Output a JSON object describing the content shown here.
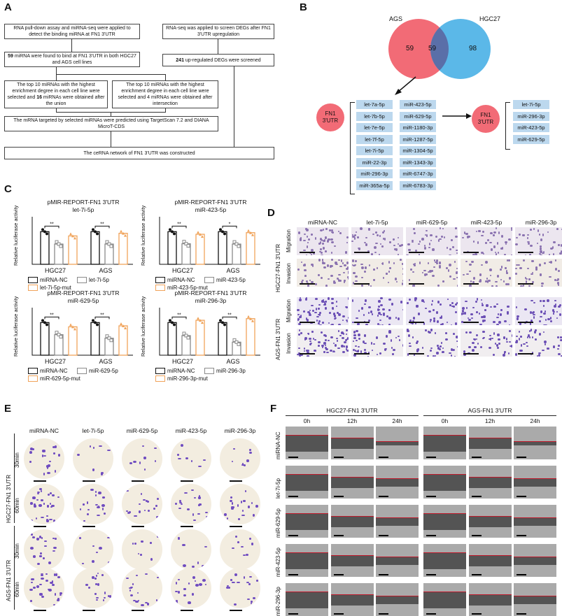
{
  "panels": [
    "A",
    "B",
    "C",
    "D",
    "E",
    "F"
  ],
  "flow": {
    "box1": "RNA pull-down assay and miRNA-seq were applied to detect the binding miRNA at FN1 3'UTR",
    "box2_num": "59",
    "box2": " miRNA were found to bind at FN1 3'UTR in both HGC27 and AGS cell lines",
    "box3a": "The top 10 miRNAs with the highest enrichment degree in each cell line were selected and ",
    "box3a_num": "16",
    "box3a_end": " miRNAs were obtained after the union",
    "box3b": "The top 10 miRNAs with the highest enrichment degree in each cell line were selected and 4 miRNAs were obtained after intersection",
    "box4": "The mRNA targeted by selected miRNAs were predicted using TargetScan 7.2 and DIANA MicroT-CDS",
    "box5": "RNA-seq was applied to screen DEGs after FN1 3'UTR upregulation",
    "box6_num": "241",
    "box6": " up-regulated DEGs were screened",
    "box7": "The ceRNA network of FN1 3'UTR was constructed"
  },
  "venn": {
    "left_label": "AGS",
    "right_label": "HGC27",
    "left_only": "59",
    "overlap": "59",
    "right_only": "98",
    "left_color": "#f26b76",
    "right_color": "#5bb8e8"
  },
  "fn1_label": "FN1\n3'UTR",
  "mirna_union": [
    "let-7a-5p",
    "let-7b-5p",
    "let-7e-5p",
    "let-7f-5p",
    "let-7i-5p",
    "miR-22-3p",
    "miR-296-3p",
    "miR-365a-5p",
    "miR-423-5p",
    "miR-629-5p",
    "miR-1180-3p",
    "miR-1287-5p",
    "miR-1304-5p",
    "miR-1343-3p",
    "miR-6747-3p",
    "miR-6783-3p"
  ],
  "mirna_intersect": [
    "let-7i-5p",
    "miR-296-3p",
    "miR-423-5p",
    "miR-629-5p"
  ],
  "luciferase": {
    "ylabel": "Relative luciferase activity",
    "groups": [
      "HGC27",
      "AGS"
    ],
    "sig": "**",
    "sig_single": "*",
    "colors": {
      "nc": "#111111",
      "mir": "#8a8a8a",
      "mut": "#f0a35a"
    },
    "charts": [
      {
        "title1": "pMIR-REPORT-FN1 3'UTR",
        "title2": "let-7i-5p",
        "leg": [
          "miRNA-NC",
          "let-7i-5p",
          "let-7i-5p-mut"
        ],
        "values": [
          [
            1.0,
            0.62,
            0.87
          ],
          [
            1.0,
            0.62,
            0.95
          ]
        ],
        "sig": [
          "**",
          "**"
        ]
      },
      {
        "title1": "pMIR-REPORT-FN1 3'UTR",
        "title2": "miR-423-5p",
        "leg": [
          "miRNA-NC",
          "miR-423-5p",
          "miR-423-5p-mut"
        ],
        "values": [
          [
            1.0,
            0.63,
            0.92
          ],
          [
            1.0,
            0.62,
            0.97
          ]
        ],
        "sig": [
          "**",
          "*"
        ]
      },
      {
        "title1": "pMIR-REPORT-FN1 3'UTR",
        "title2": "miR-629-5p",
        "leg": [
          "miRNA-NC",
          "miR-629-5p",
          "miR-629-5p-mut"
        ],
        "values": [
          [
            1.0,
            0.63,
            0.87
          ],
          [
            1.0,
            0.52,
            0.9
          ]
        ],
        "sig": [
          "**",
          "**"
        ]
      },
      {
        "title1": "pMIR-REPORT-FN1 3'UTR",
        "title2": "miR-296-3p",
        "leg": [
          "miRNA-NC",
          "miR-296-3p",
          "miR-296-3p-mut"
        ],
        "values": [
          [
            1.0,
            0.6,
            1.07
          ],
          [
            1.0,
            0.4,
            1.12
          ]
        ],
        "sig": [
          "**",
          "**"
        ]
      }
    ]
  },
  "transwell": {
    "cols": [
      "miRNA-NC",
      "let-7i-5p",
      "miR-629-5p",
      "miR-423-5p",
      "miR-296-3p"
    ],
    "groups": [
      "HGC27-FN1 3'UTR",
      "AGS-FN1 3'UTR"
    ],
    "rows": [
      "Migration",
      "Invasion"
    ]
  },
  "colony": {
    "cols": [
      "miRNA-NC",
      "let-7i-5p",
      "miR-629-5p",
      "miR-423-5p",
      "miR-296-3p"
    ],
    "groups": [
      "HGC27-FN1 3'UTR",
      "AGS-FN1 3'UTR"
    ],
    "rows": [
      "30min",
      "60min"
    ]
  },
  "wound": {
    "groups": [
      "HGC27-FN1 3'UTR",
      "AGS-FN1 3'UTR"
    ],
    "times": [
      "0h",
      "12h",
      "24h"
    ],
    "rows": [
      "miRNA-NC",
      "let-7i-5p",
      "miR-629-5p",
      "miR-423-5p",
      "miR-296-3p"
    ]
  }
}
